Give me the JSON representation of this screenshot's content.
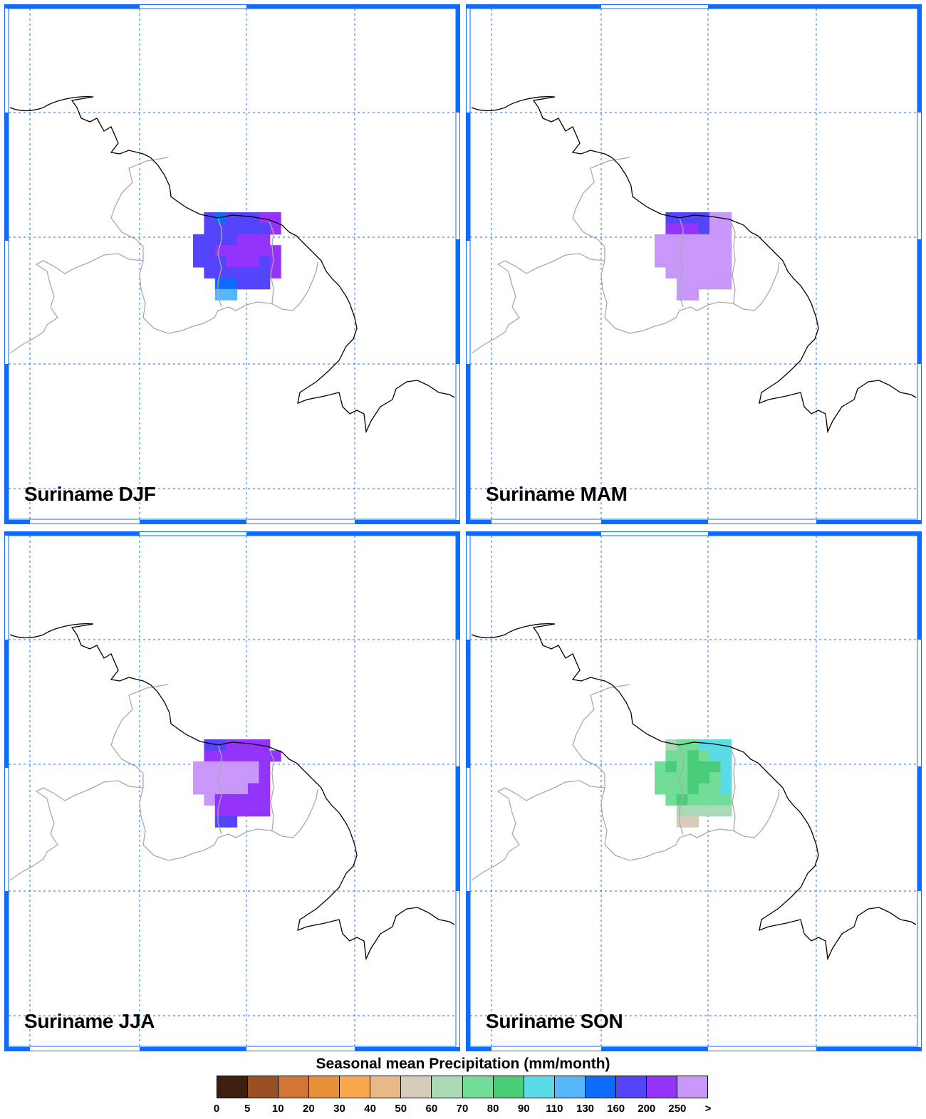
{
  "panels": [
    {
      "title": "Suriname DJF",
      "season": "DJF"
    },
    {
      "title": "Suriname MAM",
      "season": "MAM"
    },
    {
      "title": "Suriname JJA",
      "season": "JJA"
    },
    {
      "title": "Suriname SON",
      "season": "SON"
    }
  ],
  "legend": {
    "title": "Seasonal mean Precipitation (mm/month)",
    "tick_labels": [
      "0",
      "5",
      "10",
      "20",
      "30",
      "40",
      "50",
      "60",
      "70",
      "80",
      "90",
      "110",
      "130",
      "160",
      "200",
      "250",
      ">"
    ],
    "colors": [
      "#3e1f0f",
      "#9b4f22",
      "#d17530",
      "#e88f3a",
      "#fba84c",
      "#e8b887",
      "#d8cbb9",
      "#a9d9b7",
      "#71dd96",
      "#49cd78",
      "#5adbe6",
      "#56b8fb",
      "#0d6cfb",
      "#5444fb",
      "#9234fb",
      "#c897fa"
    ]
  },
  "map_style": {
    "grid_color": "#0d6cfb",
    "coastline_color": "#000000",
    "border_color": "#aaaaaa"
  },
  "chart_data": {
    "type": "heatmap",
    "variable": "Seasonal mean Precipitation (mm/month)",
    "color_bins": [
      0,
      5,
      10,
      20,
      30,
      40,
      50,
      60,
      70,
      80,
      90,
      110,
      130,
      160,
      200,
      250
    ],
    "seasons": {
      "DJF": {
        "dominant_range": "160-250",
        "notes": "blue-violet (160-200) in west/north, purple (200-250) in center-east, 110-160 at southern tip"
      },
      "MAM": {
        "dominant_range": "250+",
        "notes": "lavender (>250) almost everywhere, 160-250 at northern coast"
      },
      "JJA": {
        "dominant_range": "200-250+",
        "notes": ">250 in west-center, 200-250 in east and south, 160-200 at edges"
      },
      "SON": {
        "dominant_range": "60-130",
        "notes": "70-90 green over most, 90-110 cyan along northeast coast, 50-60 at southern tip"
      }
    }
  }
}
